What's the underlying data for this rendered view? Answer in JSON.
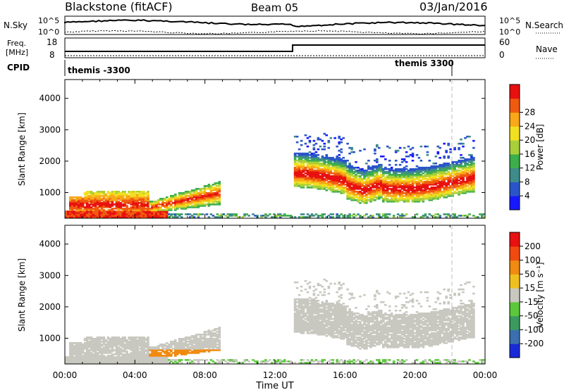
{
  "header": {
    "station": "Blackstone (fitACF)",
    "beam": "Beam 05",
    "date": "03/Jan/2016"
  },
  "summary_panel": {
    "left_label_1": "N.Sky",
    "left_ticks_1": [
      "10^5",
      "10^0"
    ],
    "right_label_1": "N.Search",
    "right_ticks_1": [
      "10^5",
      "10^0"
    ],
    "left_label_2a": "Freq.",
    "left_label_2b": "[MHz]",
    "left_ticks_2": [
      "18",
      "8"
    ],
    "right_label_2": "Nave",
    "right_ticks_2": [
      "60",
      "0"
    ],
    "cpid_label": "CPID",
    "cpid_segments": [
      {
        "name": "themis -3300",
        "start_hour": 0,
        "end_hour": 13
      },
      {
        "name": "themis 3300",
        "start_hour": 13,
        "end_hour": 24
      }
    ]
  },
  "chart_data": [
    {
      "type": "heatmap",
      "title": "",
      "xlabel": "Time UT",
      "ylabel": "Slant Range [km]",
      "x_ticks": [
        "00:00",
        "04:00",
        "08:00",
        "12:00",
        "16:00",
        "20:00",
        "00:00"
      ],
      "y_ticks": [
        "1000",
        "2000",
        "3000",
        "4000"
      ],
      "xlim": [
        0,
        24
      ],
      "ylim": [
        180,
        4600
      ],
      "colorbar": {
        "label": "Power [dB]",
        "ticks": [
          "4",
          "8",
          "12",
          "16",
          "20",
          "24",
          "28"
        ],
        "colors": [
          "#1818ff",
          "#2a55c8",
          "#3f8a8a",
          "#3cae4c",
          "#a8cf3a",
          "#f0e020",
          "#f8a818",
          "#f05a10",
          "#e81010"
        ]
      },
      "regions": [
        {
          "t0": 0.0,
          "t1": 5.8,
          "r0": 200,
          "r1": 420,
          "level": "high"
        },
        {
          "t0": 0.2,
          "t1": 4.8,
          "r0": 420,
          "r1": 1050,
          "level": "mid"
        },
        {
          "t0": 4.5,
          "t1": 8.8,
          "r0": 300,
          "r1": 1300,
          "level": "mid"
        },
        {
          "t0": 13.0,
          "t1": 23.0,
          "r0": 800,
          "r1": 2150,
          "level": "mid"
        },
        {
          "t0": 13.5,
          "t1": 23.5,
          "r0": 2200,
          "r1": 3100,
          "level": "low"
        }
      ]
    },
    {
      "type": "heatmap",
      "title": "",
      "xlabel": "Time UT",
      "ylabel": "Slant Range [km]",
      "x_ticks": [
        "00:00",
        "04:00",
        "08:00",
        "12:00",
        "16:00",
        "20:00",
        "00:00"
      ],
      "y_ticks": [
        "1000",
        "2000",
        "3000",
        "4000"
      ],
      "xlim": [
        0,
        24
      ],
      "ylim": [
        180,
        4600
      ],
      "colorbar": {
        "label": "Velocity [m s⁻¹]",
        "ticks": [
          "200",
          "100",
          "50",
          "15",
          "-15",
          "-50",
          "-100",
          "-200"
        ],
        "colors": [
          "#1a2ad8",
          "#3b6fb0",
          "#3a9a60",
          "#5ac83a",
          "#c8c8c0",
          "#f0c020",
          "#f08a10",
          "#f04a10",
          "#e81010"
        ]
      }
    }
  ]
}
